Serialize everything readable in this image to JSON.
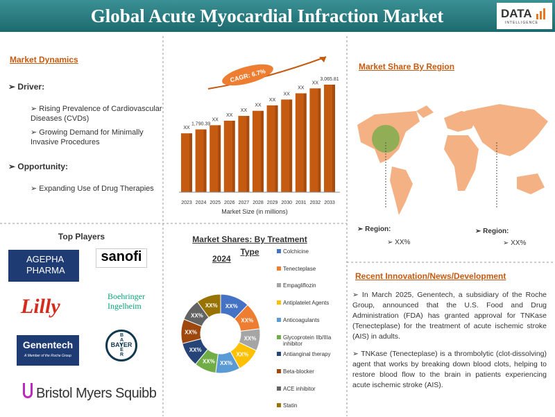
{
  "header": {
    "title": "Global Acute Myocardial Infraction Market",
    "logo": "DATA",
    "logo_sub": "INTELLIGENCE"
  },
  "market_dynamics": {
    "title": "Market Dynamics",
    "driver": "Driver:",
    "drivers": [
      "Rising Prevalence of Cardiovascular Diseases (CVDs)",
      "Growing Demand for Minimally Invasive Procedures"
    ],
    "opportunity": "Opportunity:",
    "opportunities": [
      "Expanding Use of Drug Therapies"
    ]
  },
  "market_size": {
    "type": "bar",
    "cagr": "CAGR: 6.7%",
    "x_label": "Market Size (in millions)",
    "categories": [
      "2023",
      "2024",
      "2025",
      "2026",
      "2027",
      "2028",
      "2029",
      "2030",
      "2031",
      "2032",
      "2033"
    ],
    "values": [
      1678,
      1790.39,
      1910,
      2038,
      2175,
      2320,
      2476,
      2642,
      2819,
      2960,
      3065.81
    ],
    "value_labels": [
      "XX",
      "1,790.39",
      "XX",
      "XX",
      "XX",
      "XX",
      "XX",
      "XX",
      "XX",
      "XX",
      "3,065.81"
    ],
    "color": "#c55a11"
  },
  "region": {
    "title": "Market Share By Region",
    "labels": [
      {
        "label": "Region:",
        "value": "XX%"
      },
      {
        "label": "Region:",
        "value": "XX%"
      }
    ]
  },
  "players": {
    "title": "Top Players",
    "companies": [
      "AGEPHA PHARMA",
      "sanofi",
      "Lilly",
      "Boehringer Ingelheim",
      "Genentech",
      "A Member of the Roche Group",
      "BAYER",
      "Bristol Myers Squibb"
    ]
  },
  "treatment": {
    "type": "pie",
    "title": "Market Shares: By Treatment Type",
    "year": "2024",
    "categories": [
      "Colchicine",
      "Tenecteplase",
      "Empagliflozin",
      "Antiplatelet Agents",
      "Anticoagulants",
      "Glycoprotein IIb/IIIa inhibitor",
      "Antianginal therapy",
      "Beta-blocker",
      "ACE inhibitor",
      "Statin"
    ],
    "colors": [
      "#4472c4",
      "#ed7d31",
      "#a5a5a5",
      "#ffc000",
      "#5b9bd5",
      "#70ad47",
      "#264478",
      "#9e480e",
      "#636363",
      "#997300"
    ],
    "values": [
      12,
      11,
      9,
      10,
      10,
      9,
      10,
      10,
      9,
      10
    ],
    "value_labels": [
      "XX%",
      "XX%",
      "XX%",
      "XX%",
      "XX%",
      "XX%",
      "XX%",
      "XX%",
      "XX%",
      "XX%"
    ]
  },
  "news": {
    "title": "Recent Innovation/News/Development",
    "items": [
      "In March 2025, Genentech, a subsidiary of the Roche Group, announced that the U.S. Food and Drug Administration (FDA) has granted approval for TNKase (Tenecteplase) for the treatment of acute ischemic stroke (AIS) in adults.",
      "TNKase (Tenecteplase) is a thrombolytic (clot-dissolving) agent that works by breaking down blood clots, helping to restore blood flow to the brain in patients experiencing acute ischemic stroke (AIS)."
    ]
  }
}
